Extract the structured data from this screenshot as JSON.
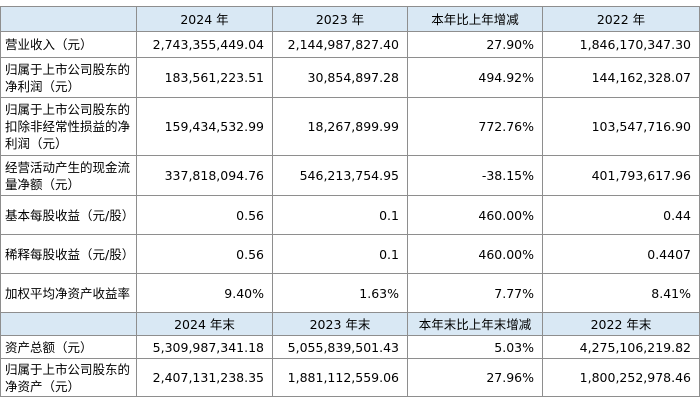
{
  "header1": [
    "",
    "2024 年",
    "2023 年",
    "本年比上年增减",
    "2022 年"
  ],
  "rows1": [
    {
      "label": "营业收入（元）",
      "values": [
        "2,743,355,449.04",
        "2,144,987,827.40",
        "27.90%",
        "1,846,170,347.30"
      ]
    },
    {
      "label": "归属于上市公司股东的净利润（元）",
      "values": [
        "183,561,223.51",
        "30,854,897.28",
        "494.92%",
        "144,162,328.07"
      ]
    },
    {
      "label": "归属于上市公司股东的扣除非经常性损益的净利润（元）",
      "values": [
        "159,434,532.99",
        "18,267,899.99",
        "772.76%",
        "103,547,716.90"
      ]
    },
    {
      "label": "经营活动产生的现金流量净额（元）",
      "values": [
        "337,818,094.76",
        "546,213,754.95",
        "-38.15%",
        "401,793,617.96"
      ]
    },
    {
      "label": "基本每股收益（元/股）",
      "values": [
        "0.56",
        "0.1",
        "460.00%",
        "0.44"
      ]
    },
    {
      "label": "稀释每股收益（元/股）",
      "values": [
        "0.56",
        "0.1",
        "460.00%",
        "0.4407"
      ]
    },
    {
      "label": "加权平均净资产收益率",
      "values": [
        "9.40%",
        "1.63%",
        "7.77%",
        "8.41%"
      ]
    }
  ],
  "header2": [
    "",
    "2024 年末",
    "2023 年末",
    "本年末比上年末增减",
    "2022 年末"
  ],
  "rows2": [
    {
      "label": "资产总额（元）",
      "values": [
        "5,309,987,341.18",
        "5,055,839,501.43",
        "5.03%",
        "4,275,106,219.82"
      ]
    },
    {
      "label": "归属于上市公司股东的净资产（元）",
      "values": [
        "2,407,131,238.35",
        "1,881,112,559.06",
        "27.96%",
        "1,800,252,978.46"
      ]
    }
  ]
}
